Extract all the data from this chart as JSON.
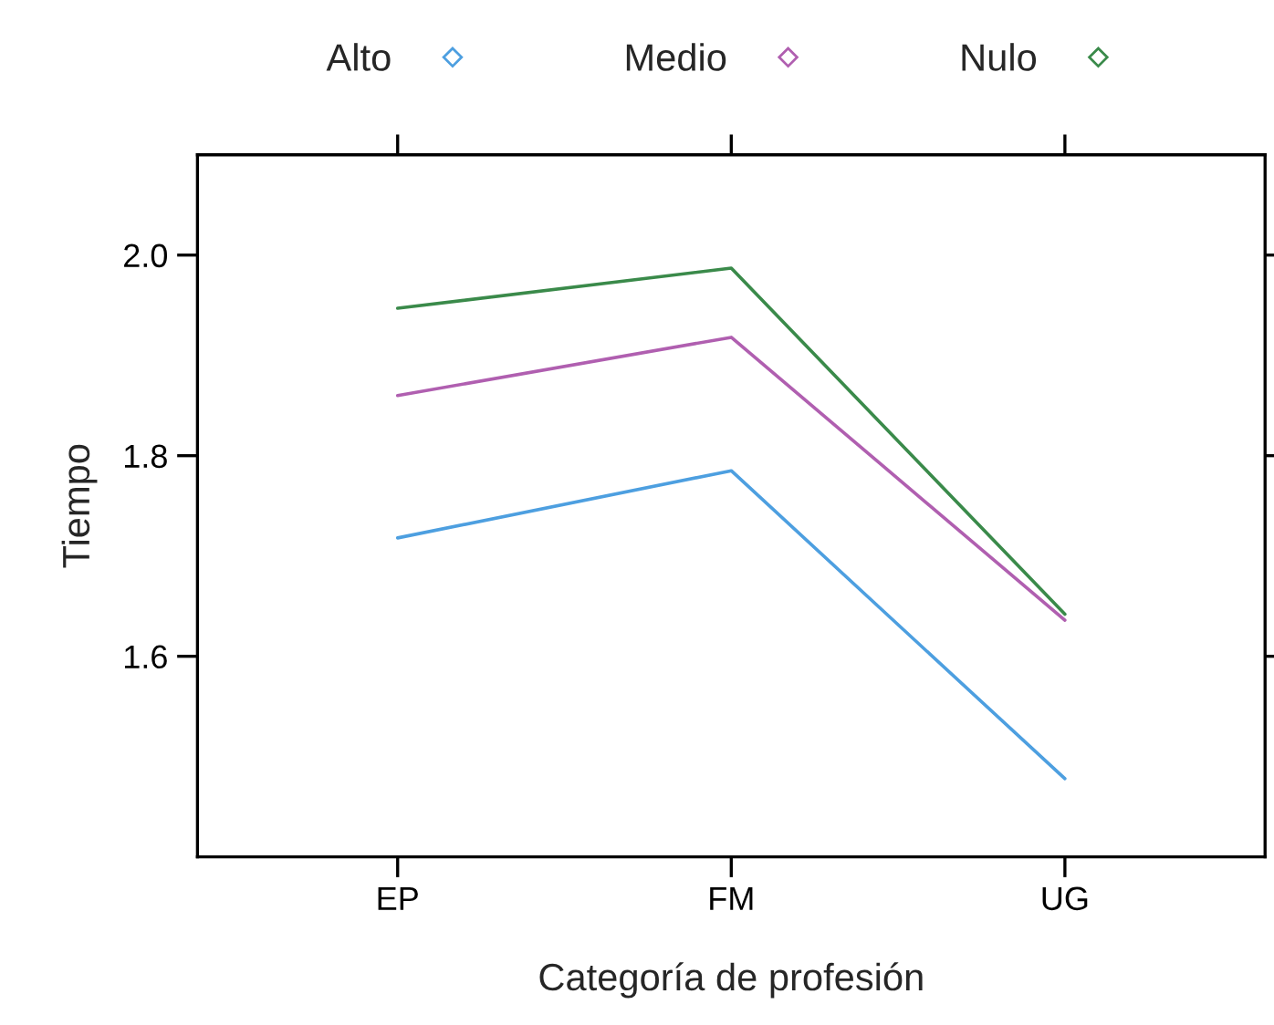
{
  "chart_data": {
    "type": "line",
    "xlabel": "Categoría de profesión",
    "ylabel": "Tiempo",
    "categories": [
      "EP",
      "FM",
      "UG"
    ],
    "series": [
      {
        "name": "Alto",
        "color": "#4d9fe0",
        "values": [
          1.718,
          1.785,
          1.478
        ]
      },
      {
        "name": "Medio",
        "color": "#b05fb0",
        "values": [
          1.86,
          1.918,
          1.636
        ]
      },
      {
        "name": "Nulo",
        "color": "#3a8a4a",
        "values": [
          1.947,
          1.987,
          1.642
        ]
      }
    ],
    "ylim": [
      1.4,
      2.1
    ],
    "yticks": [
      1.6,
      1.8,
      {
        "value": 2.0,
        "label": "2.0"
      }
    ],
    "grid": false,
    "legend": "top",
    "marker": "none",
    "line_style": "solid"
  }
}
